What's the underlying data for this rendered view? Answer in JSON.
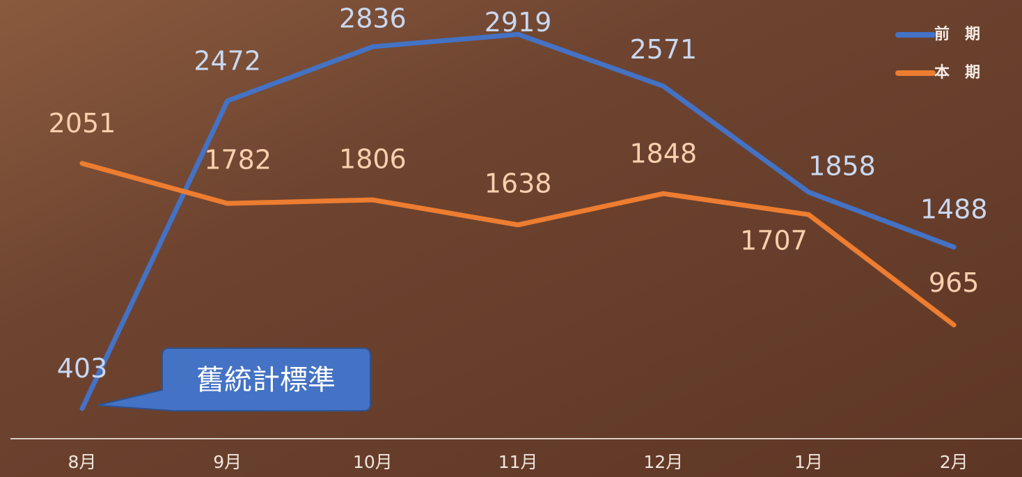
{
  "chart_data": {
    "type": "line",
    "categories": [
      "8月",
      "9月",
      "10月",
      "11月",
      "12月",
      "1月",
      "2月"
    ],
    "series": [
      {
        "name": "前期",
        "color": "#4472c4",
        "values": [
          403,
          2472,
          2836,
          2919,
          2571,
          1858,
          1488
        ]
      },
      {
        "name": "本期",
        "color": "#ed7d31",
        "values": [
          2051,
          1782,
          1806,
          1638,
          1848,
          1707,
          965
        ]
      }
    ],
    "ylim": [
      200,
      3150
    ],
    "legend": "upper right",
    "annotation": "舊統計標準"
  }
}
